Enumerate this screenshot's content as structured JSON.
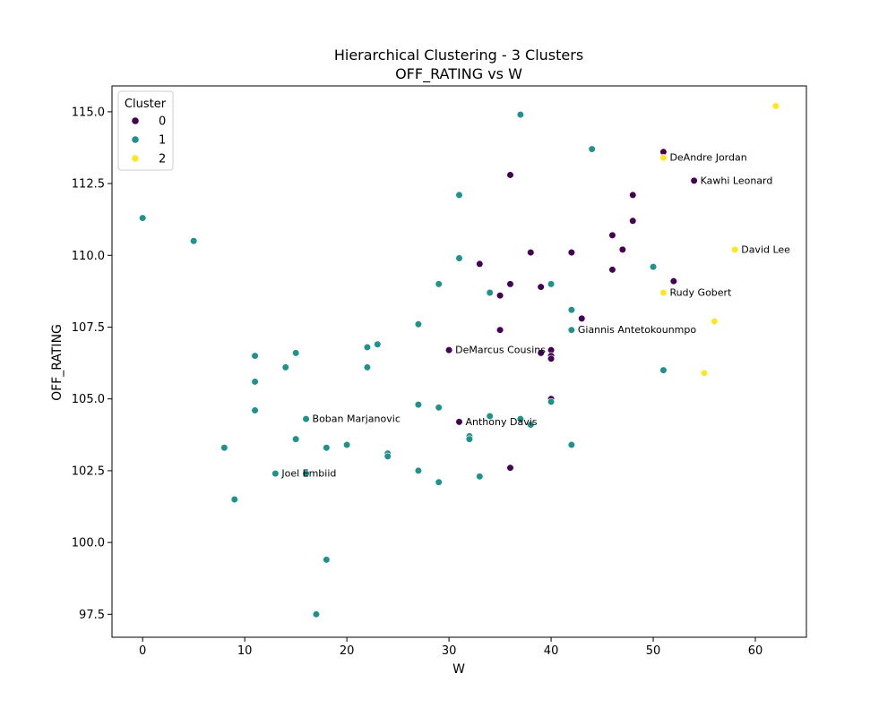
{
  "chart_data": {
    "type": "scatter",
    "title": "Hierarchical Clustering - 3 Clusters",
    "subtitle": "OFF_RATING vs W",
    "xlabel": "W",
    "ylabel": "OFF_RATING",
    "xlim": [
      -3,
      65
    ],
    "ylim": [
      96.7,
      115.9
    ],
    "xticks": [
      0,
      10,
      20,
      30,
      40,
      50,
      60
    ],
    "yticks": [
      97.5,
      100.0,
      102.5,
      105.0,
      107.5,
      110.0,
      112.5,
      115.0
    ],
    "ytick_labels": [
      "97.5",
      "100.0",
      "102.5",
      "105.0",
      "107.5",
      "110.0",
      "112.5",
      "115.0"
    ],
    "grid": false,
    "legend": {
      "title": "Cluster",
      "position": "top-left",
      "entries": [
        {
          "label": "0",
          "color": "#440154"
        },
        {
          "label": "1",
          "color": "#21918c"
        },
        {
          "label": "2",
          "color": "#fde725"
        }
      ]
    },
    "series": [
      {
        "name": "0",
        "color": "#440154",
        "points": [
          [
            51,
            113.6
          ],
          [
            36,
            112.8
          ],
          [
            54,
            112.6
          ],
          [
            48,
            112.1
          ],
          [
            48,
            111.2
          ],
          [
            46,
            110.7
          ],
          [
            47,
            110.2
          ],
          [
            38,
            110.1
          ],
          [
            42,
            110.1
          ],
          [
            33,
            109.7
          ],
          [
            46,
            109.5
          ],
          [
            52,
            109.1
          ],
          [
            36,
            109.0
          ],
          [
            39,
            108.9
          ],
          [
            35,
            108.6
          ],
          [
            43,
            107.8
          ],
          [
            35,
            107.4
          ],
          [
            30,
            106.7
          ],
          [
            40,
            106.7
          ],
          [
            39,
            106.6
          ],
          [
            40,
            106.5
          ],
          [
            40,
            106.4
          ],
          [
            40,
            105.0
          ],
          [
            31,
            104.2
          ],
          [
            36,
            102.6
          ]
        ]
      },
      {
        "name": "1",
        "color": "#21918c",
        "points": [
          [
            37,
            114.9
          ],
          [
            44,
            113.7
          ],
          [
            0,
            111.3
          ],
          [
            31,
            112.1
          ],
          [
            5,
            110.5
          ],
          [
            31,
            109.9
          ],
          [
            50,
            109.6
          ],
          [
            29,
            109.0
          ],
          [
            40,
            109.0
          ],
          [
            34,
            108.7
          ],
          [
            42,
            108.1
          ],
          [
            27,
            107.6
          ],
          [
            42,
            107.4
          ],
          [
            23,
            106.9
          ],
          [
            22,
            106.8
          ],
          [
            15,
            106.6
          ],
          [
            11,
            106.5
          ],
          [
            14,
            106.1
          ],
          [
            22,
            106.1
          ],
          [
            51,
            106.0
          ],
          [
            11,
            105.6
          ],
          [
            40,
            104.9
          ],
          [
            27,
            104.8
          ],
          [
            29,
            104.7
          ],
          [
            11,
            104.6
          ],
          [
            34,
            104.4
          ],
          [
            16,
            104.3
          ],
          [
            37,
            104.3
          ],
          [
            38,
            104.1
          ],
          [
            32,
            103.7
          ],
          [
            15,
            103.6
          ],
          [
            32,
            103.6
          ],
          [
            20,
            103.4
          ],
          [
            42,
            103.4
          ],
          [
            8,
            103.3
          ],
          [
            18,
            103.3
          ],
          [
            24,
            103.1
          ],
          [
            24,
            103.0
          ],
          [
            27,
            102.5
          ],
          [
            13,
            102.4
          ],
          [
            16,
            102.4
          ],
          [
            33,
            102.3
          ],
          [
            29,
            102.1
          ],
          [
            9,
            101.5
          ],
          [
            18,
            99.4
          ],
          [
            17,
            97.5
          ]
        ]
      },
      {
        "name": "2",
        "color": "#fde725",
        "points": [
          [
            62,
            115.2
          ],
          [
            51,
            113.4
          ],
          [
            58,
            110.2
          ],
          [
            51,
            108.7
          ],
          [
            56,
            107.7
          ],
          [
            55,
            105.9
          ]
        ]
      }
    ],
    "annotations": [
      {
        "text": "DeAndre Jordan",
        "x": 51,
        "y": 113.4
      },
      {
        "text": "Kawhi Leonard",
        "x": 54,
        "y": 112.6
      },
      {
        "text": "David Lee",
        "x": 58,
        "y": 110.2
      },
      {
        "text": "Rudy Gobert",
        "x": 51,
        "y": 108.7
      },
      {
        "text": "Giannis Antetokounmpo",
        "x": 42,
        "y": 107.4
      },
      {
        "text": "DeMarcus Cousins",
        "x": 30,
        "y": 106.7
      },
      {
        "text": "Boban Marjanovic",
        "x": 16,
        "y": 104.3
      },
      {
        "text": "Anthony Davis",
        "x": 31,
        "y": 104.2
      },
      {
        "text": "Joel Embiid",
        "x": 13,
        "y": 102.4
      }
    ]
  }
}
